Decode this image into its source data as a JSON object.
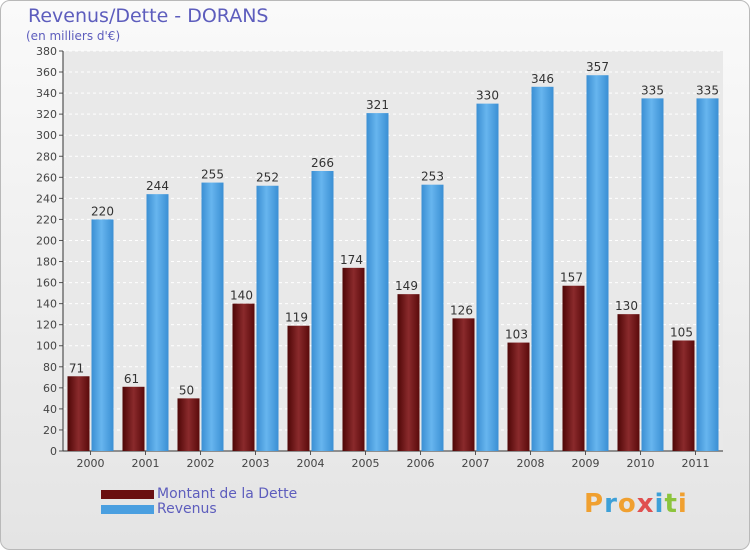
{
  "header": {
    "title": "Revenus/Dette - DORANS",
    "subtitle": "(en milliers d'€)"
  },
  "legend": {
    "items": [
      {
        "label": "Montant de la Dette",
        "color": "#6a0f10"
      },
      {
        "label": "Revenus",
        "color": "#4a9fe0"
      }
    ]
  },
  "logo": {
    "text": "Proxiti"
  },
  "chart_data": {
    "type": "bar",
    "title": "Revenus/Dette - DORANS",
    "subtitle": "(en milliers d'€)",
    "xlabel": "",
    "ylabel": "",
    "categories": [
      "2000",
      "2001",
      "2002",
      "2003",
      "2004",
      "2005",
      "2006",
      "2007",
      "2008",
      "2009",
      "2010",
      "2011"
    ],
    "series": [
      {
        "name": "Montant de la Dette",
        "color": "#6a0f10",
        "values": [
          71,
          61,
          50,
          140,
          119,
          174,
          149,
          126,
          103,
          157,
          130,
          105
        ]
      },
      {
        "name": "Revenus",
        "color": "#4a9fe0",
        "values": [
          220,
          244,
          255,
          252,
          266,
          321,
          253,
          330,
          346,
          357,
          335,
          335
        ]
      }
    ],
    "ylim": [
      0,
      380
    ],
    "ytick_step": 20,
    "grid": true,
    "legend_position": "bottom-left"
  }
}
